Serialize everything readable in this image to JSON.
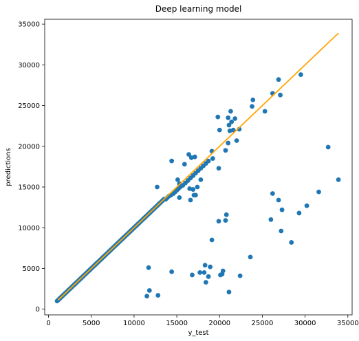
{
  "chart_data": {
    "type": "scatter",
    "title": "Deep learning model",
    "xlabel": "y_test",
    "ylabel": "predictions",
    "xlim": [
      -450,
      35500
    ],
    "ylim": [
      -700,
      35600
    ],
    "xticks": [
      0,
      5000,
      10000,
      15000,
      20000,
      25000,
      30000,
      35000
    ],
    "yticks": [
      0,
      5000,
      10000,
      15000,
      20000,
      25000,
      30000,
      35000
    ],
    "grid": false,
    "colors": {
      "points": "#1f77b4",
      "line": "#ffa500"
    },
    "identity_line": {
      "x": [
        1100,
        33900
      ],
      "y": [
        1100,
        33900
      ]
    },
    "dense_points": {
      "from": 1000,
      "to": 13600,
      "step": 125
    },
    "points": [
      [
        13700,
        13500
      ],
      [
        13900,
        13700
      ],
      [
        14100,
        13900
      ],
      [
        14300,
        14000
      ],
      [
        14600,
        14200
      ],
      [
        14800,
        14400
      ],
      [
        15000,
        14600
      ],
      [
        15200,
        14800
      ],
      [
        15400,
        15000
      ],
      [
        15700,
        15200
      ],
      [
        16000,
        15500
      ],
      [
        16300,
        15800
      ],
      [
        16600,
        16100
      ],
      [
        16900,
        16400
      ],
      [
        17200,
        16700
      ],
      [
        17500,
        17000
      ],
      [
        17800,
        17300
      ],
      [
        18100,
        17600
      ],
      [
        18400,
        17900
      ],
      [
        18700,
        18200
      ],
      [
        14400,
        18200
      ],
      [
        15100,
        15900
      ],
      [
        15300,
        15400
      ],
      [
        15900,
        17800
      ],
      [
        16400,
        19000
      ],
      [
        16700,
        18600
      ],
      [
        17100,
        18700
      ],
      [
        17400,
        15000
      ],
      [
        17800,
        15900
      ],
      [
        16500,
        14800
      ],
      [
        16900,
        14700
      ],
      [
        16600,
        13400
      ],
      [
        17000,
        14000
      ],
      [
        17200,
        14000
      ],
      [
        15300,
        13700
      ],
      [
        19100,
        19400
      ],
      [
        19200,
        18500
      ],
      [
        19900,
        17300
      ],
      [
        20000,
        22000
      ],
      [
        19800,
        23600
      ],
      [
        20700,
        19500
      ],
      [
        21000,
        20400
      ],
      [
        21100,
        22600
      ],
      [
        21200,
        21900
      ],
      [
        21400,
        23000
      ],
      [
        21600,
        22000
      ],
      [
        21800,
        23400
      ],
      [
        22000,
        20700
      ],
      [
        22300,
        22100
      ],
      [
        21300,
        24300
      ],
      [
        21000,
        23500
      ],
      [
        23800,
        24900
      ],
      [
        23900,
        25700
      ],
      [
        25300,
        24300
      ],
      [
        26200,
        26500
      ],
      [
        26900,
        28200
      ],
      [
        27100,
        26300
      ],
      [
        29500,
        28800
      ],
      [
        12700,
        15000
      ],
      [
        32700,
        19900
      ],
      [
        33900,
        15900
      ],
      [
        31600,
        14400
      ],
      [
        30200,
        12700
      ],
      [
        29300,
        11800
      ],
      [
        27300,
        12200
      ],
      [
        26900,
        13400
      ],
      [
        26200,
        14200
      ],
      [
        26000,
        11000
      ],
      [
        27200,
        9600
      ],
      [
        28400,
        8200
      ],
      [
        20800,
        11600
      ],
      [
        20700,
        10900
      ],
      [
        19900,
        10800
      ],
      [
        19100,
        8500
      ],
      [
        23600,
        6400
      ],
      [
        22400,
        4100
      ],
      [
        20400,
        4700
      ],
      [
        20300,
        4300
      ],
      [
        20100,
        4200
      ],
      [
        18900,
        5200
      ],
      [
        18700,
        4000
      ],
      [
        18400,
        3300
      ],
      [
        18200,
        4500
      ],
      [
        18300,
        5400
      ],
      [
        17700,
        4500
      ],
      [
        16800,
        4200
      ],
      [
        14400,
        4600
      ],
      [
        11700,
        5100
      ],
      [
        11500,
        1600
      ],
      [
        11800,
        2300
      ],
      [
        12800,
        1700
      ],
      [
        21100,
        2100
      ]
    ]
  }
}
